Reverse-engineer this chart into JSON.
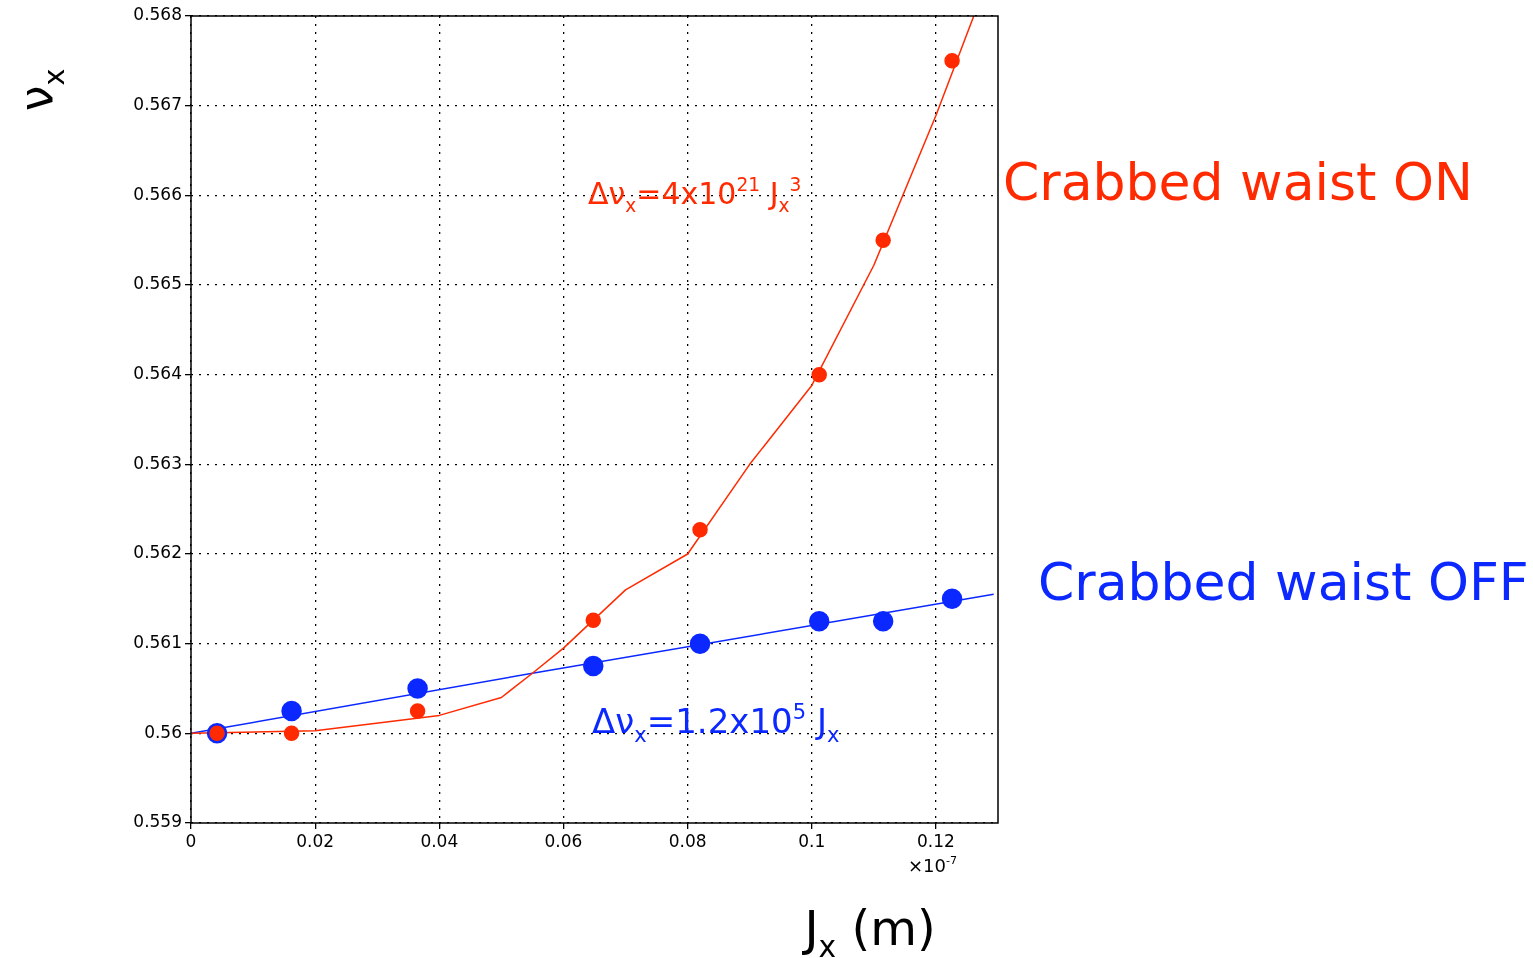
{
  "chart_data": {
    "type": "scatter",
    "xlabel": "J$_{x}$ (m)",
    "ylabel": "ν$_{x}$",
    "xlim": [
      0,
      0.13
    ],
    "xticks": [
      0,
      0.02,
      0.04,
      0.06,
      0.08,
      0.1,
      0.12
    ],
    "ylim": [
      0.559,
      0.568
    ],
    "yticks": [
      0.559,
      0.56,
      0.561,
      0.562,
      0.563,
      0.564,
      0.565,
      0.566,
      0.567,
      0.568
    ],
    "grid": true,
    "series": [
      {
        "name": "Crabbed waist ON",
        "color": "#ff2a00",
        "marker": "circle",
        "x": [
          0.0042,
          0.0162,
          0.0365,
          0.0648,
          0.082,
          0.1012,
          0.1115,
          0.1226
        ],
        "values": [
          0.56,
          0.56,
          0.56025,
          0.56126,
          0.56227,
          0.564,
          0.5655,
          0.5675
        ]
      },
      {
        "name": "Crabbed waist OFF",
        "color": "#0a28ff",
        "marker": "circle",
        "x": [
          0.0042,
          0.0162,
          0.0365,
          0.0648,
          0.082,
          0.1012,
          0.1115,
          0.1226
        ],
        "values": [
          0.56,
          0.56025,
          0.5605,
          0.56075,
          0.561,
          0.56125,
          0.56125,
          0.5615
        ]
      },
      {
        "type": "line",
        "color": "#ff2a00",
        "x": [
          0,
          0.02,
          0.04,
          0.05,
          0.055,
          0.06,
          0.07,
          0.08,
          0.09,
          0.1,
          0.11,
          0.12,
          0.1261
        ],
        "values": [
          0.56,
          0.56003,
          0.5602,
          0.5604,
          0.56067,
          0.56095,
          0.5616,
          0.562,
          0.563,
          0.56388,
          0.56522,
          0.56689,
          0.568
        ]
      },
      {
        "type": "line",
        "color": "#0a28ff",
        "x": [
          0,
          0.055,
          0.1293
        ],
        "values": [
          0.56,
          0.56067,
          0.56155
        ]
      }
    ],
    "annotations": [
      "Δν$_{x}$=4x10$^{21}$ J$_{x}$$^{3}$",
      "Δν$_{x}$=1.2x10$^{5}$ J$_{x}$",
      "×10$^{-7}$"
    ]
  }
}
